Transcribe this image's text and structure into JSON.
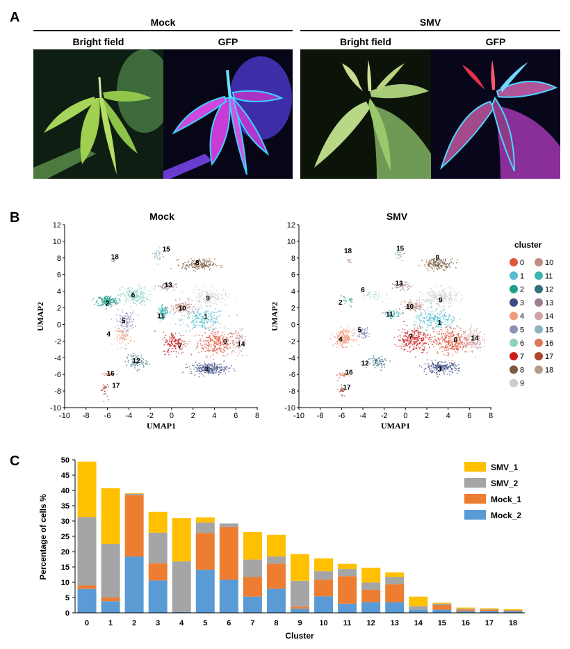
{
  "panelA": {
    "letter": "A",
    "groups": [
      {
        "title": "Mock",
        "sub": [
          "Bright field",
          "GFP"
        ]
      },
      {
        "title": "SMV",
        "sub": [
          "Bright field",
          "GFP"
        ]
      }
    ]
  },
  "panelB": {
    "letter": "B",
    "plots": [
      {
        "title": "Mock",
        "xlabel": "UMAP1",
        "ylabel": "UMAP2"
      },
      {
        "title": "SMV",
        "xlabel": "UMAP1",
        "ylabel": "UMAP2"
      }
    ],
    "xticks": [
      "-10",
      "-8",
      "-6",
      "-4",
      "-2",
      "0",
      "2",
      "4",
      "6",
      "8"
    ],
    "yticks": [
      "12",
      "10",
      "8",
      "6",
      "4",
      "2",
      "0",
      "-2",
      "-4",
      "-6",
      "-8",
      "-10"
    ],
    "legend_title": "cluster",
    "clusters": [
      {
        "id": "0",
        "color": "#e0563b"
      },
      {
        "id": "1",
        "color": "#56bcd1"
      },
      {
        "id": "2",
        "color": "#21a08a"
      },
      {
        "id": "3",
        "color": "#3c4d85"
      },
      {
        "id": "4",
        "color": "#ee9a7c"
      },
      {
        "id": "5",
        "color": "#8c92b9"
      },
      {
        "id": "6",
        "color": "#8fd1c3"
      },
      {
        "id": "7",
        "color": "#cc1d1d"
      },
      {
        "id": "8",
        "color": "#7b5a3f"
      },
      {
        "id": "9",
        "color": "#cccccc"
      },
      {
        "id": "10",
        "color": "#c08c83"
      },
      {
        "id": "11",
        "color": "#3fb3b0"
      },
      {
        "id": "12",
        "color": "#33707f"
      },
      {
        "id": "13",
        "color": "#9f7c90"
      },
      {
        "id": "14",
        "color": "#d1a3a8"
      },
      {
        "id": "15",
        "color": "#8eb3bd"
      },
      {
        "id": "16",
        "color": "#d97a5b"
      },
      {
        "id": "17",
        "color": "#a8472c"
      },
      {
        "id": "18",
        "color": "#b59b87"
      }
    ]
  },
  "panelC": {
    "letter": "C"
  },
  "chart_data": {
    "type": "bar",
    "stacked": true,
    "xlabel": "Cluster",
    "ylabel": "Percentage of cells %",
    "ylim": [
      0,
      50
    ],
    "yticks": [
      0,
      5,
      10,
      15,
      20,
      25,
      30,
      35,
      40,
      45,
      50
    ],
    "categories": [
      "0",
      "1",
      "2",
      "3",
      "4",
      "5",
      "6",
      "7",
      "8",
      "9",
      "10",
      "11",
      "12",
      "13",
      "14",
      "15",
      "16",
      "17",
      "18"
    ],
    "legend_position": "top-right",
    "series": [
      {
        "name": "Mock_2",
        "color": "#5b9bd5",
        "values": [
          7.8,
          3.8,
          18.4,
          10.6,
          0.3,
          14.1,
          10.8,
          5.3,
          7.9,
          1.4,
          5.4,
          3.0,
          3.5,
          3.5,
          1.0,
          1.0,
          0.6,
          0.6,
          0.5
        ]
      },
      {
        "name": "Mock_1",
        "color": "#ed7d31",
        "values": [
          1.2,
          1.2,
          20.0,
          5.6,
          0.0,
          12.0,
          17.2,
          6.4,
          8.2,
          0.6,
          5.4,
          9.0,
          4.0,
          5.8,
          0.0,
          1.5,
          0.5,
          0.4,
          0.3
        ]
      },
      {
        "name": "SMV_2",
        "color": "#a5a5a5",
        "values": [
          22.3,
          17.5,
          0.5,
          10.0,
          16.5,
          3.4,
          1.2,
          5.7,
          2.3,
          8.5,
          2.8,
          2.3,
          2.4,
          2.4,
          1.2,
          0.5,
          0.3,
          0.2,
          0.1
        ]
      },
      {
        "name": "SMV_1",
        "color": "#ffc000",
        "values": [
          18.1,
          18.2,
          0.2,
          6.8,
          14.1,
          1.7,
          0.0,
          9.0,
          7.1,
          8.7,
          4.2,
          1.7,
          4.8,
          1.5,
          3.1,
          0.3,
          0.3,
          0.3,
          0.3
        ]
      }
    ],
    "legend_order": [
      "SMV_1",
      "SMV_2",
      "Mock_1",
      "Mock_2"
    ]
  }
}
